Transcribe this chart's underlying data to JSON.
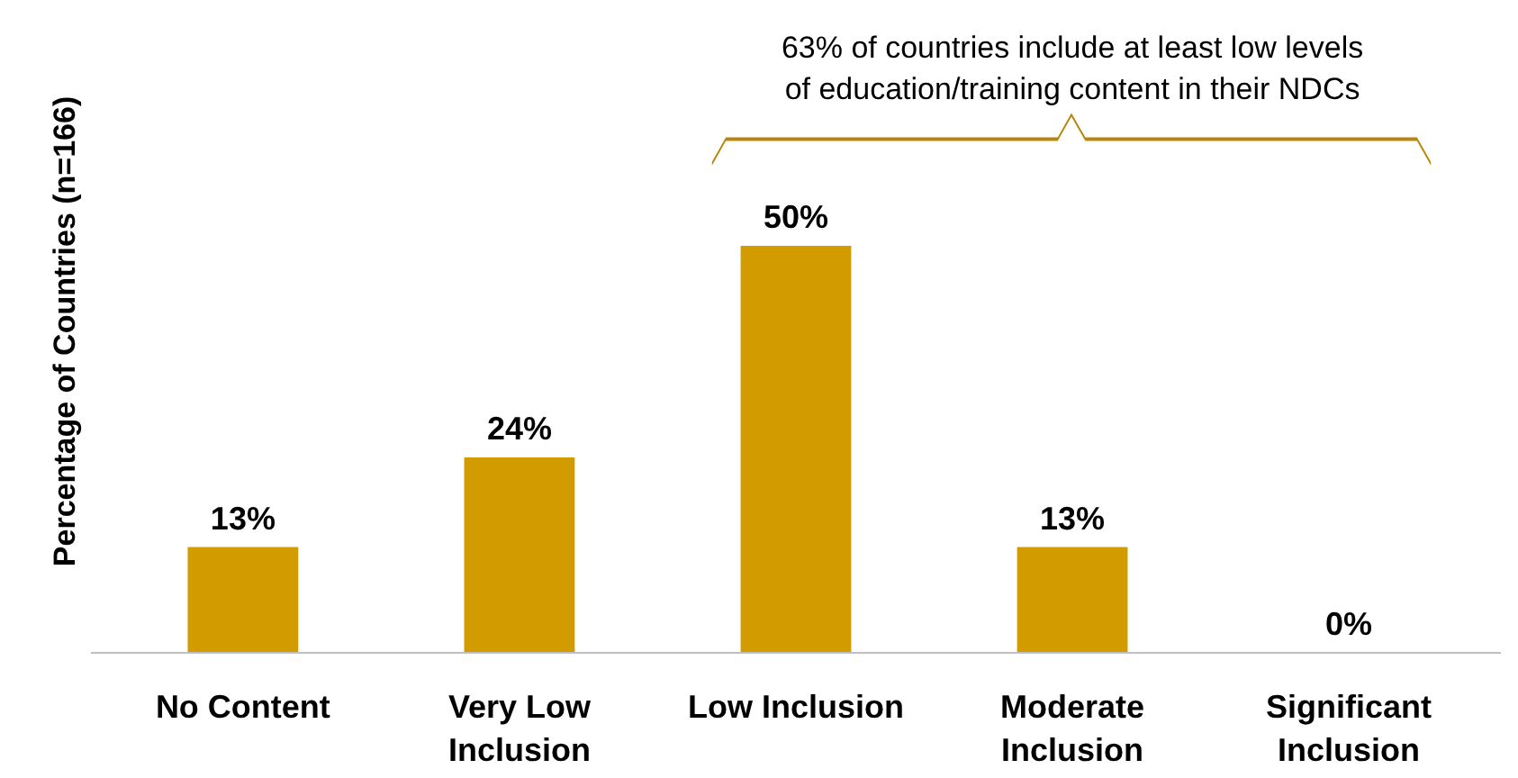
{
  "chart_data": {
    "type": "bar",
    "ylabel": "Percentage of Countries (n=166)",
    "categories": [
      "No Content",
      "Very Low Inclusion",
      "Low Inclusion",
      "Moderate Inclusion",
      "Significant Inclusion"
    ],
    "values": [
      13,
      24,
      50,
      13,
      0
    ],
    "color": "#d29c00",
    "value_labels": [
      "13%",
      "24%",
      "50%",
      "13%",
      "0%"
    ],
    "annotations": [
      "63% of countries include at least low levels\nof education/training content in their NDCs"
    ],
    "grid": false
  }
}
